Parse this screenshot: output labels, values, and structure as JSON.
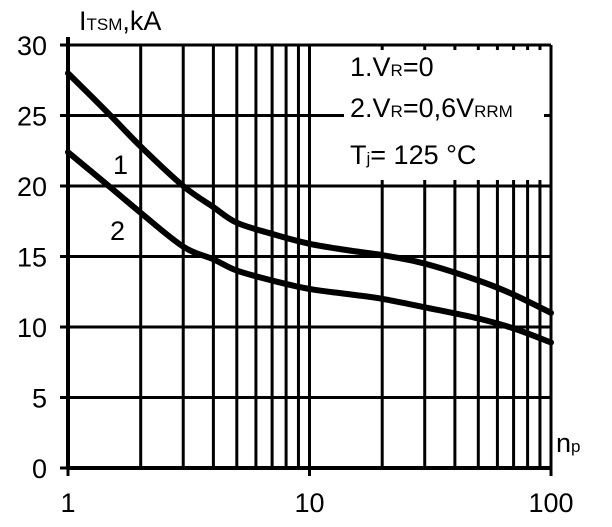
{
  "chart_data": {
    "type": "line",
    "x_scale": "log",
    "xlim": [
      1,
      100
    ],
    "ylim": [
      0,
      30
    ],
    "x_ticks": [
      1,
      10,
      100
    ],
    "x_tick_labels": [
      "1",
      "10",
      "100"
    ],
    "y_ticks": [
      0,
      5,
      10,
      15,
      20,
      25,
      30
    ],
    "y_tick_labels": [
      "0",
      "5",
      "10",
      "15",
      "20",
      "25",
      "30"
    ],
    "grid": true,
    "ylabel": {
      "main": "I",
      "sub": "TSM",
      "rest": ",kA"
    },
    "xlabel": {
      "main": "n",
      "sub": "p"
    },
    "legend": {
      "line1": {
        "prefix": "1.V",
        "sub": "R",
        "suffix": "=0"
      },
      "line2": {
        "prefix": "2.V",
        "sub": "R",
        "mid": "=0,6V",
        "sub2": "RRM"
      },
      "line3": {
        "prefix": "T",
        "sub": "j",
        "suffix": "= 125 °C"
      }
    },
    "series": [
      {
        "name": "1",
        "x": [
          1,
          1.5,
          2,
          3,
          4,
          5,
          7,
          10,
          15,
          20,
          30,
          50,
          70,
          100
        ],
        "y": [
          28,
          25,
          22.8,
          20,
          18.5,
          17.4,
          16.6,
          15.9,
          15.4,
          15.1,
          14.5,
          13.3,
          12.3,
          11.0
        ]
      },
      {
        "name": "2",
        "x": [
          1,
          1.5,
          2,
          3,
          4,
          5,
          7,
          10,
          15,
          20,
          30,
          50,
          70,
          100
        ],
        "y": [
          22.4,
          19.9,
          18.1,
          15.7,
          14.8,
          14.0,
          13.3,
          12.7,
          12.3,
          12.0,
          11.4,
          10.6,
          9.9,
          8.9
        ]
      }
    ]
  }
}
